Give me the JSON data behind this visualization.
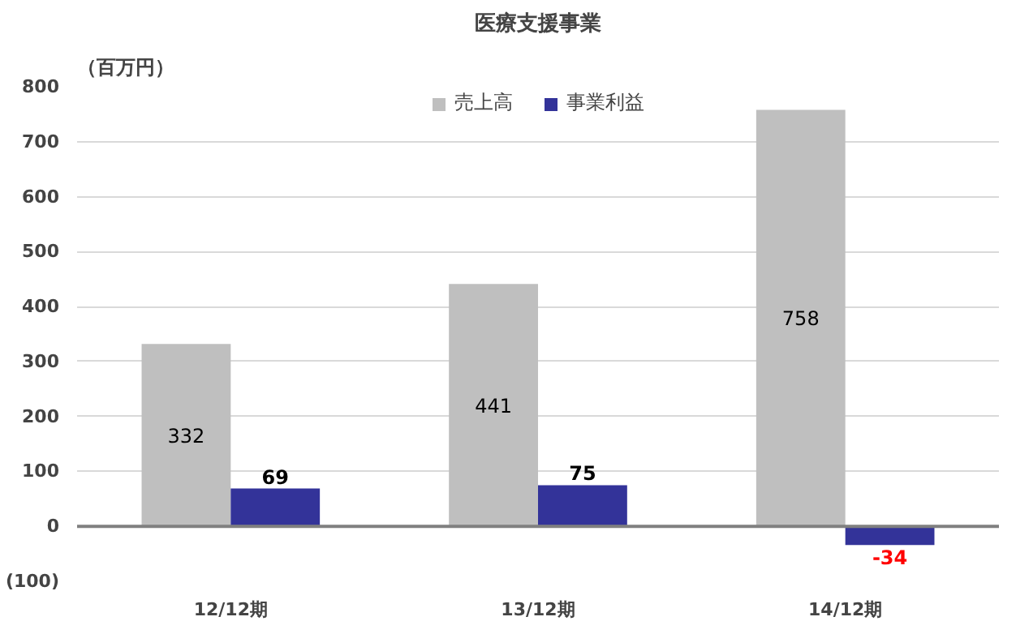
{
  "chart_data": {
    "type": "bar",
    "title": "医療支援事業",
    "ylabel": "（百万円）",
    "categories": [
      "12/12期",
      "13/12期",
      "14/12期"
    ],
    "series": [
      {
        "name": "売上高",
        "color": "#bfbfbf",
        "values": [
          332,
          441,
          758
        ]
      },
      {
        "name": "事業利益",
        "color": "#333399",
        "values": [
          69,
          75,
          -34
        ]
      }
    ],
    "ylim": [
      -100,
      800
    ],
    "yticks": [
      {
        "value": -100,
        "label": "(100)"
      },
      0,
      100,
      200,
      300,
      400,
      500,
      600,
      700,
      800
    ],
    "grid": "y",
    "legend": "top",
    "data_labels": true
  }
}
